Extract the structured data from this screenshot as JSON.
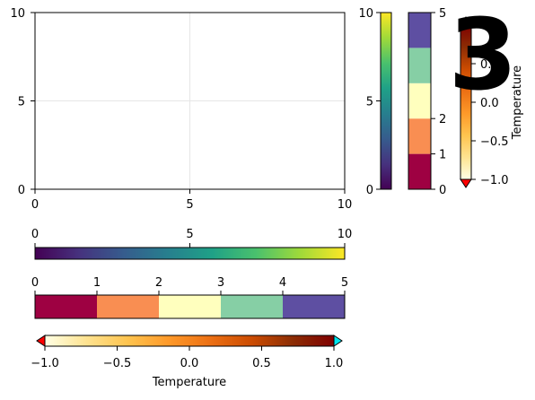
{
  "chart_data": [
    {
      "type": "scatter",
      "title": "",
      "xlabel": "",
      "ylabel": "",
      "xlim": [
        0,
        10
      ],
      "ylim": [
        0,
        10
      ],
      "xticks": [
        "0",
        "5",
        "10"
      ],
      "yticks": [
        "0",
        "5",
        "10"
      ],
      "grid": true,
      "series": []
    },
    {
      "type": "colorbar",
      "orientation": "vertical",
      "colormap": "viridis",
      "limits": [
        0,
        10
      ],
      "ticks": [
        "0",
        "5",
        "10"
      ],
      "stops": [
        "#440154",
        "#46327e",
        "#365c8d",
        "#277f8e",
        "#1fa187",
        "#4ac16d",
        "#a0da39",
        "#fde725"
      ]
    },
    {
      "type": "colorbar",
      "orientation": "vertical",
      "colormap": "Spectral (categorical)",
      "limits": [
        0,
        5
      ],
      "ticks": [
        "0",
        "1",
        "2",
        "5"
      ],
      "categories": [
        {
          "from": 0,
          "to": 1,
          "color": "#9e0142"
        },
        {
          "from": 1,
          "to": 2,
          "color": "#f98e52"
        },
        {
          "from": 2,
          "to": 3,
          "color": "#ffffbe"
        },
        {
          "from": 3,
          "to": 4,
          "color": "#86cfa5"
        },
        {
          "from": 4,
          "to": 5,
          "color": "#5e4fa2"
        }
      ]
    },
    {
      "type": "colorbar",
      "orientation": "vertical",
      "colormap": "YlOrBr-like",
      "label": "Temperature",
      "limits": [
        -1.0,
        1.0
      ],
      "ticks": [
        "−1.0",
        "−0.5",
        "0.0",
        "0.5"
      ],
      "lowclip": "#ff0000",
      "highclip": "#00e5ee",
      "stops": [
        "#ffffe5",
        "#fee391",
        "#fec44f",
        "#fe9929",
        "#ec7014",
        "#cc4c02",
        "#8c2d04",
        "#7f0000"
      ]
    },
    {
      "type": "colorbar",
      "orientation": "horizontal",
      "colormap": "viridis",
      "limits": [
        0,
        10
      ],
      "ticks": [
        "0",
        "5",
        "10"
      ]
    },
    {
      "type": "colorbar",
      "orientation": "horizontal",
      "colormap": "Spectral (categorical)",
      "limits": [
        0,
        5
      ],
      "ticks": [
        "0",
        "1",
        "2",
        "3",
        "4",
        "5"
      ]
    },
    {
      "type": "colorbar",
      "orientation": "horizontal",
      "colormap": "YlOrBr-like",
      "label": "Temperature",
      "limits": [
        -1.0,
        1.0
      ],
      "ticks": [
        "−1.0",
        "−0.5",
        "0.0",
        "0.5",
        "1.0"
      ]
    }
  ],
  "overlay_text": "3",
  "colors": {
    "axis": "#000000",
    "grid": "#e6e6e6",
    "background": "#ffffff"
  }
}
